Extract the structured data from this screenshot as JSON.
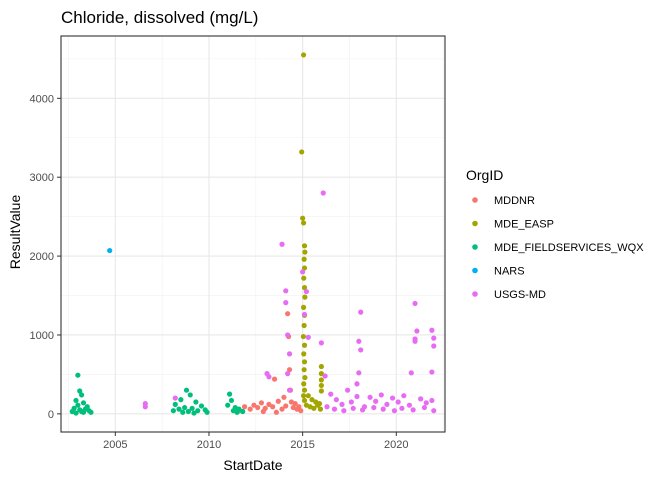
{
  "chart_data": {
    "type": "scatter",
    "title": "Chloride, dissolved (mg/L)",
    "xlabel": "StartDate",
    "ylabel": "ResultValue",
    "xlim": [
      2002.1,
      2022.6
    ],
    "ylim": [
      -230,
      4790
    ],
    "xticks": [
      2005,
      2010,
      2015,
      2020
    ],
    "yticks": [
      0,
      1000,
      2000,
      3000,
      4000
    ],
    "grid": true,
    "legend": {
      "title": "OrgID",
      "position": "right"
    },
    "series": [
      {
        "name": "MDDNR",
        "color": "#F8766D",
        "points": [
          [
            2011.6,
            40
          ],
          [
            2011.9,
            90
          ],
          [
            2012.2,
            60
          ],
          [
            2012.4,
            110
          ],
          [
            2012.6,
            80
          ],
          [
            2012.8,
            140
          ],
          [
            2013.0,
            70
          ],
          [
            2013.2,
            120
          ],
          [
            2013.4,
            90
          ],
          [
            2013.5,
            440
          ],
          [
            2013.7,
            160
          ],
          [
            2013.9,
            60
          ],
          [
            2014.0,
            210
          ],
          [
            2014.1,
            100
          ],
          [
            2014.2,
            1270
          ],
          [
            2014.25,
            980
          ],
          [
            2014.3,
            560
          ],
          [
            2014.35,
            300
          ],
          [
            2014.4,
            150
          ],
          [
            2014.5,
            80
          ],
          [
            2014.6,
            130
          ],
          [
            2014.7,
            60
          ],
          [
            2014.8,
            90
          ],
          [
            2014.9,
            40
          ],
          [
            2012.9,
            30
          ],
          [
            2013.6,
            20
          ]
        ]
      },
      {
        "name": "MDE_EASP",
        "color": "#A3A500",
        "points": [
          [
            2015.05,
            4550
          ],
          [
            2014.95,
            3320
          ],
          [
            2015.0,
            2480
          ],
          [
            2015.05,
            2420
          ],
          [
            2015.1,
            2130
          ],
          [
            2015.12,
            2050
          ],
          [
            2015.08,
            1960
          ],
          [
            2015.1,
            1850
          ],
          [
            2015.06,
            1720
          ],
          [
            2015.1,
            1600
          ],
          [
            2015.12,
            1480
          ],
          [
            2015.05,
            1350
          ],
          [
            2015.1,
            1250
          ],
          [
            2015.08,
            1120
          ],
          [
            2015.04,
            980
          ],
          [
            2015.1,
            870
          ],
          [
            2015.06,
            760
          ],
          [
            2015.1,
            660
          ],
          [
            2015.08,
            560
          ],
          [
            2015.12,
            460
          ],
          [
            2015.06,
            380
          ],
          [
            2015.1,
            300
          ],
          [
            2015.05,
            230
          ],
          [
            2015.1,
            170
          ],
          [
            2016.0,
            600
          ],
          [
            2016.0,
            510
          ],
          [
            2016.0,
            430
          ],
          [
            2016.0,
            360
          ],
          [
            2016.0,
            290
          ],
          [
            2015.3,
            230
          ],
          [
            2015.5,
            180
          ],
          [
            2015.7,
            150
          ],
          [
            2015.9,
            130
          ],
          [
            2015.2,
            110
          ],
          [
            2015.4,
            90
          ],
          [
            2015.6,
            70
          ],
          [
            2015.8,
            110
          ],
          [
            2015.95,
            60
          ]
        ]
      },
      {
        "name": "MDE_FIELDSERVICES_WQX",
        "color": "#00BF7D",
        "points": [
          [
            2003.0,
            490
          ],
          [
            2003.1,
            290
          ],
          [
            2003.2,
            240
          ],
          [
            2002.9,
            170
          ],
          [
            2003.3,
            140
          ],
          [
            2003.0,
            110
          ],
          [
            2003.5,
            90
          ],
          [
            2002.8,
            70
          ],
          [
            2003.4,
            60
          ],
          [
            2003.1,
            50
          ],
          [
            2003.6,
            40
          ],
          [
            2002.7,
            30
          ],
          [
            2003.2,
            30
          ],
          [
            2003.7,
            20
          ],
          [
            2003.3,
            20
          ],
          [
            2002.9,
            10
          ],
          [
            2008.8,
            300
          ],
          [
            2009.0,
            240
          ],
          [
            2008.5,
            180
          ],
          [
            2009.3,
            150
          ],
          [
            2008.2,
            120
          ],
          [
            2009.6,
            100
          ],
          [
            2008.7,
            80
          ],
          [
            2009.1,
            70
          ],
          [
            2008.4,
            60
          ],
          [
            2009.8,
            50
          ],
          [
            2008.1,
            40
          ],
          [
            2009.4,
            40
          ],
          [
            2008.9,
            30
          ],
          [
            2009.9,
            20
          ],
          [
            2008.6,
            20
          ],
          [
            2009.2,
            10
          ],
          [
            2011.1,
            250
          ],
          [
            2011.2,
            170
          ],
          [
            2011.0,
            110
          ],
          [
            2011.4,
            80
          ],
          [
            2011.6,
            60
          ],
          [
            2011.3,
            40
          ],
          [
            2011.8,
            30
          ],
          [
            2011.5,
            20
          ]
        ]
      },
      {
        "name": "NARS",
        "color": "#00B0F6",
        "points": [
          [
            2004.7,
            2070
          ]
        ]
      },
      {
        "name": "USGS-MD",
        "color": "#E76BF3",
        "points": [
          [
            2006.6,
            130
          ],
          [
            2006.6,
            90
          ],
          [
            2008.2,
            200
          ],
          [
            2013.1,
            510
          ],
          [
            2013.2,
            470
          ],
          [
            2013.9,
            2150
          ],
          [
            2014.1,
            1560
          ],
          [
            2014.1,
            1410
          ],
          [
            2014.2,
            1000
          ],
          [
            2014.3,
            760
          ],
          [
            2014.2,
            510
          ],
          [
            2014.3,
            300
          ],
          [
            2015.0,
            1800
          ],
          [
            2015.2,
            1550
          ],
          [
            2015.1,
            1260
          ],
          [
            2015.3,
            970
          ],
          [
            2016.1,
            2800
          ],
          [
            2016.0,
            900
          ],
          [
            2016.2,
            480
          ],
          [
            2018.1,
            1290
          ],
          [
            2018.0,
            920
          ],
          [
            2018.1,
            810
          ],
          [
            2018.0,
            520
          ],
          [
            2017.9,
            380
          ],
          [
            2021.0,
            1400
          ],
          [
            2021.1,
            1050
          ],
          [
            2021.0,
            950
          ],
          [
            2021.0,
            920
          ],
          [
            2020.8,
            520
          ],
          [
            2021.9,
            1060
          ],
          [
            2022.0,
            960
          ],
          [
            2022.0,
            860
          ],
          [
            2021.9,
            530
          ],
          [
            2016.5,
            250
          ],
          [
            2016.8,
            180
          ],
          [
            2017.1,
            120
          ],
          [
            2017.4,
            300
          ],
          [
            2017.6,
            150
          ],
          [
            2017.9,
            220
          ],
          [
            2018.3,
            90
          ],
          [
            2018.6,
            210
          ],
          [
            2018.9,
            160
          ],
          [
            2019.2,
            240
          ],
          [
            2019.5,
            120
          ],
          [
            2019.8,
            200
          ],
          [
            2020.1,
            150
          ],
          [
            2020.4,
            230
          ],
          [
            2020.7,
            110
          ],
          [
            2021.3,
            190
          ],
          [
            2021.6,
            140
          ],
          [
            2021.9,
            170
          ],
          [
            2016.3,
            90
          ],
          [
            2016.7,
            60
          ],
          [
            2017.2,
            40
          ],
          [
            2017.7,
            70
          ],
          [
            2018.2,
            50
          ],
          [
            2018.8,
            80
          ],
          [
            2019.3,
            60
          ],
          [
            2019.9,
            40
          ],
          [
            2020.3,
            70
          ],
          [
            2020.9,
            50
          ],
          [
            2021.5,
            80
          ],
          [
            2022.0,
            40
          ]
        ]
      }
    ]
  }
}
